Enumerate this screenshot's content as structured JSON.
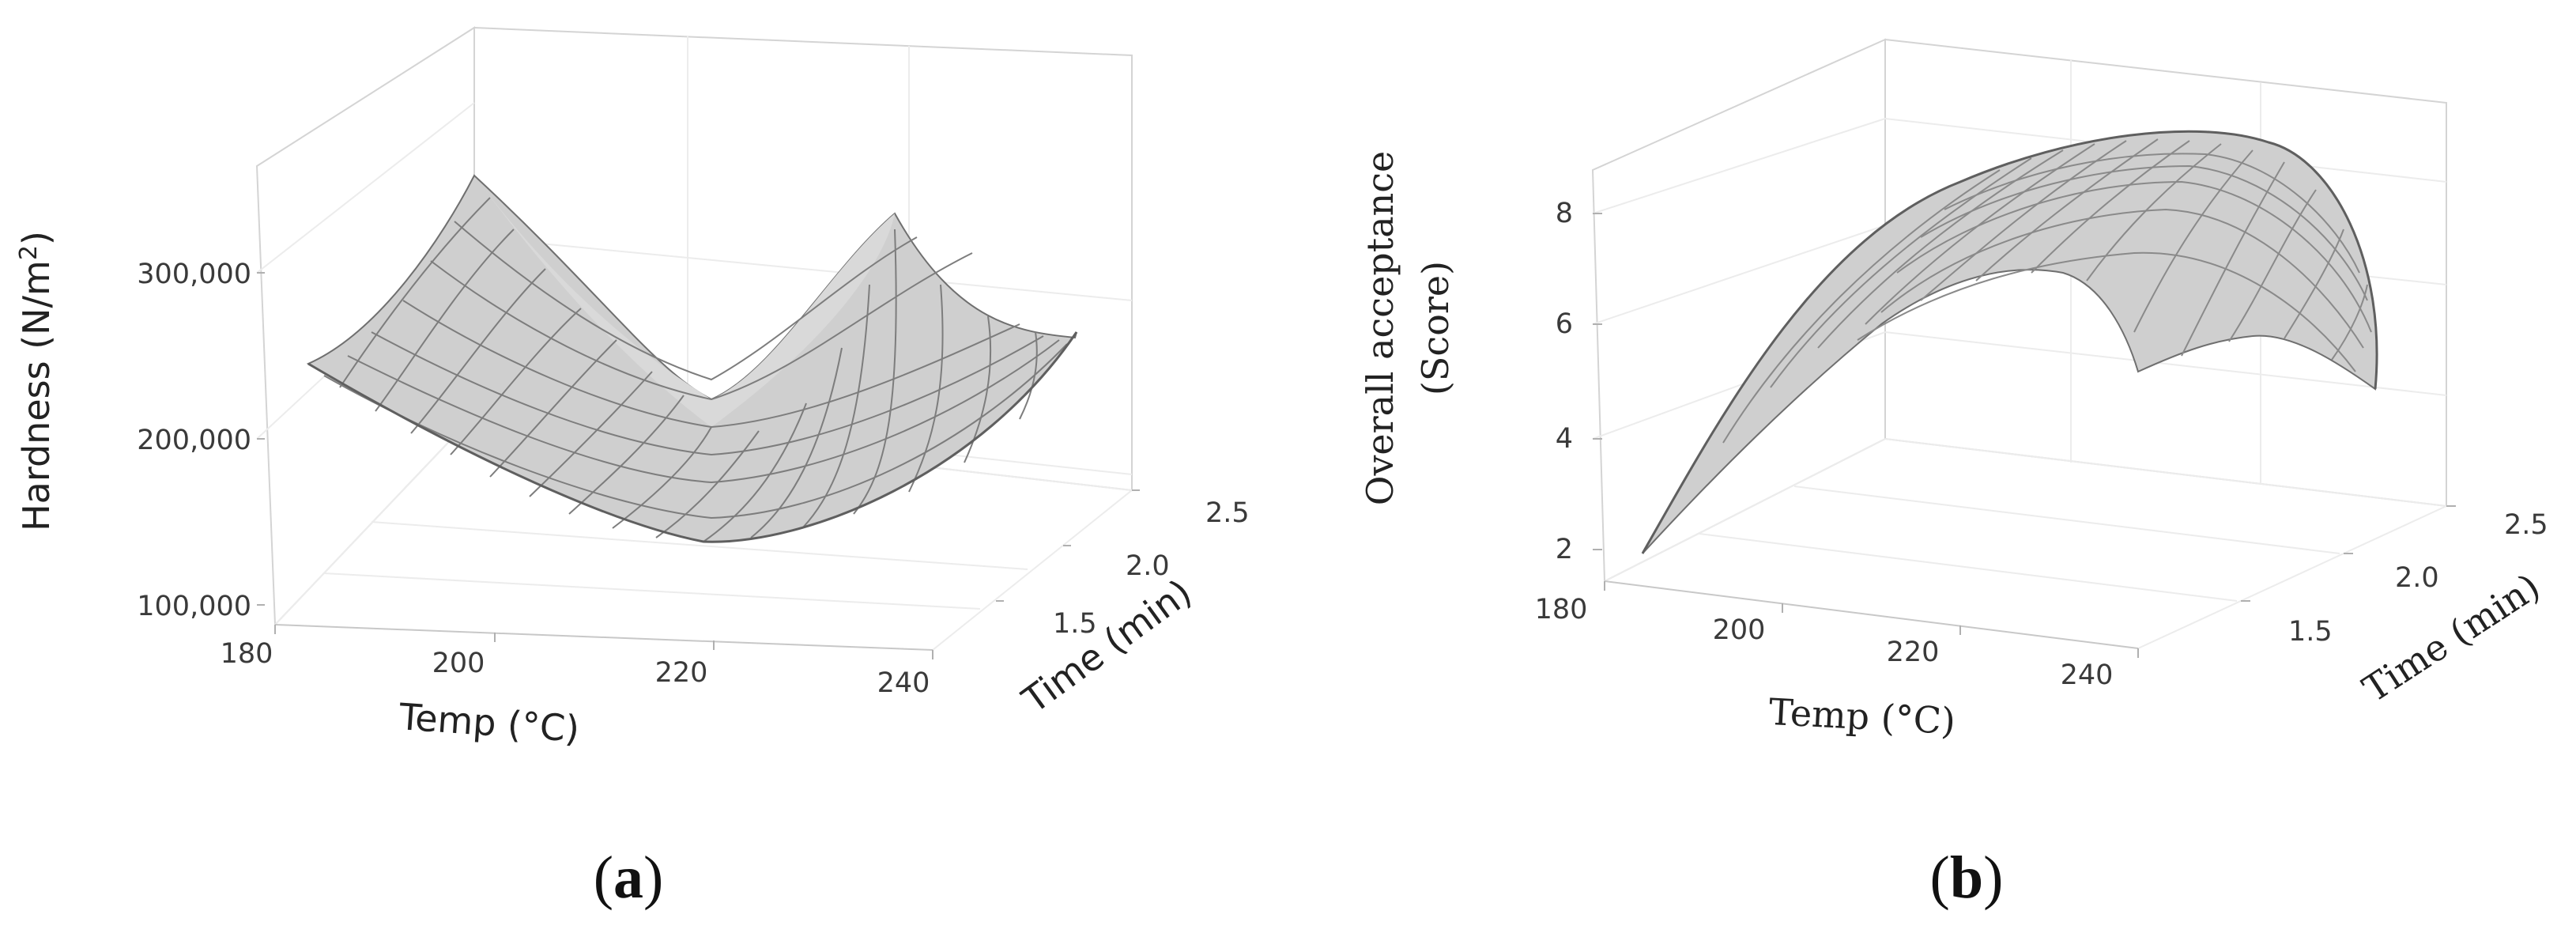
{
  "chart_data": [
    {
      "type": "surface",
      "panel_label_prefix": "(",
      "panel_label_letter": "a",
      "panel_label_suffix": ")",
      "xlabel": "Temp (°C)",
      "ylabel": "Time (min)",
      "zlabel_main": "Hardness (N/m",
      "zlabel_sup": "2",
      "zlabel_close": ")",
      "x_ticks": [
        "180",
        "200",
        "220",
        "240"
      ],
      "y_ticks": [
        "1.5",
        "2.0",
        "2.5"
      ],
      "z_ticks": [
        "100,000",
        "200,000",
        "300,000"
      ],
      "xlim": [
        180,
        240
      ],
      "ylim": [
        1.0,
        2.5
      ],
      "zlim": [
        100000,
        350000
      ],
      "surface_corners": {
        "temp_180_time_1.0": 355000,
        "temp_240_time_1.0": 240000,
        "temp_180_time_2.5": 245000,
        "temp_240_time_2.5": 225000,
        "minimum": 135000
      },
      "surface_color": "#cfcfcf",
      "mesh_color": "#7d7d7d"
    },
    {
      "type": "surface",
      "panel_label_prefix": "(",
      "panel_label_letter": "b",
      "panel_label_suffix": ")",
      "xlabel": "Temp (°C)",
      "ylabel": "Time (min)",
      "zlabel_line1": "Overall acceptance",
      "zlabel_line2": "(Score)",
      "x_ticks": [
        "180",
        "200",
        "220",
        "240"
      ],
      "y_ticks": [
        "1.5",
        "2.0",
        "2.5"
      ],
      "z_ticks": [
        "2",
        "4",
        "6",
        "8"
      ],
      "xlim": [
        180,
        240
      ],
      "ylim": [
        1.0,
        2.5
      ],
      "zlim": [
        1.5,
        9
      ],
      "surface_corners": {
        "temp_180_time_1.0": 2.0,
        "temp_240_time_1.0": 4.0,
        "temp_180_time_2.5": 6.5,
        "temp_240_time_2.5": 5.0,
        "maximum": 8.5
      },
      "surface_color": "#cfcfcf",
      "mesh_color": "#8a8a8a"
    }
  ]
}
